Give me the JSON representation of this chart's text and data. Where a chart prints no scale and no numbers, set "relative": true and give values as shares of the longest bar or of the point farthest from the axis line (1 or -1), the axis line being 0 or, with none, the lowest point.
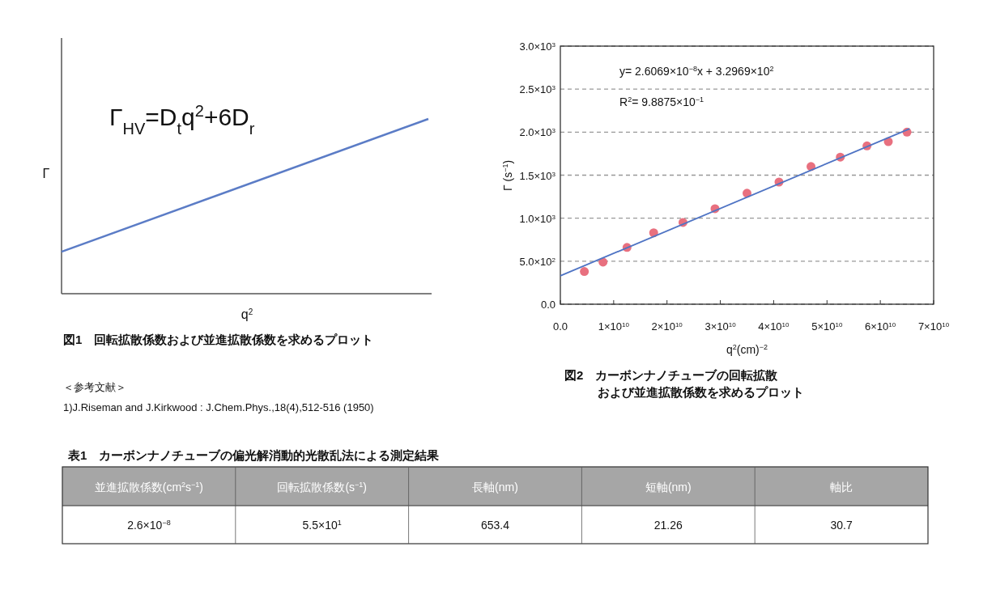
{
  "chart_data": [
    {
      "type": "line",
      "relative": true,
      "categories": [
        null,
        null
      ],
      "values": [
        0.24,
        1
      ],
      "color": "#5b7cc6",
      "xlabel": "q$^{2}$",
      "ylabel": "Γ",
      "annotations": [
        "Γ$_{HV}$=D$_{t}$q$^{2}$+6D$_{r}$",
        "図1　回転拡散係数および並進拡散係数を求めるプロット",
        "＜参考文献＞",
        "1)J.Riseman and J.Kirkwood : J.Chem.Phys.,18(4),512-516 (1950)"
      ]
    },
    {
      "type": "scatter",
      "grid": "y",
      "xlabel": "q$^{2}$(cm)$^{−2}$",
      "ylabel": "Γ (s$^{−1}$)",
      "xlim": [
        0,
        70000000000
      ],
      "ylim": [
        0,
        3000
      ],
      "xticks": [
        {
          "value": 0,
          "label": "0.0"
        },
        {
          "value": 10000000000,
          "label": "1×10$^{10}$"
        },
        {
          "value": 20000000000,
          "label": "2×10$^{10}$"
        },
        {
          "value": 30000000000,
          "label": "3×10$^{10}$"
        },
        {
          "value": 40000000000,
          "label": "4×10$^{10}$"
        },
        {
          "value": 50000000000,
          "label": "5×10$^{10}$"
        },
        {
          "value": 60000000000,
          "label": "6×10$^{10}$"
        },
        {
          "value": 70000000000,
          "label": "7×10$^{10}$"
        }
      ],
      "yticks": [
        {
          "value": 0,
          "label": "0.0"
        },
        {
          "value": 500,
          "label": "5.0×10$^{2}$"
        },
        {
          "value": 1000,
          "label": "1.0×10$^{3}$"
        },
        {
          "value": 1500,
          "label": "1.5×10$^{3}$"
        },
        {
          "value": 2000,
          "label": "2.0×10$^{3}$"
        },
        {
          "value": 2500,
          "label": "2.5×10$^{3}$"
        },
        {
          "value": 3000,
          "label": "3.0×10$^{3}$"
        }
      ],
      "series": [
        {
          "type": "scatter",
          "marker": "circle",
          "color": "#e8707f",
          "x": [
            4500000000,
            8000000000,
            12500000000,
            17500000000,
            23000000000,
            29000000000,
            35000000000,
            41000000000,
            47000000000,
            52500000000,
            57500000000,
            61500000000,
            65000000000
          ],
          "values": [
            380,
            490,
            660,
            830,
            950,
            1110,
            1290,
            1420,
            1600,
            1710,
            1840,
            1890,
            2000
          ]
        },
        {
          "type": "line",
          "marker": "none",
          "color": "#4f74c4",
          "x": [
            0,
            65500000000
          ],
          "values": [
            330,
            2040
          ]
        }
      ],
      "annotations": [
        "y= 2.6069×10$^{−8}$x + 3.2969×10$^{2}$",
        "R$^{2}$= 9.8875×10$^{−1}$",
        "図2　カーボンナノチューブの回転拡散",
        "および並進拡散係数を求めるプロット"
      ]
    },
    {
      "type": "other",
      "title": "表1　カーボンナノチューブの偏光解消動的光散乱法による測定結果",
      "categories": [
        "並進拡散係数(cm$^{2}$s$^{−1}$)",
        "回転拡散係数(s$^{−1}$)",
        "長軸(nm)",
        "短軸(nm)",
        "軸比"
      ],
      "annotations": [
        "2.6×10$^{−8}$",
        "5.5×10$^{1}$",
        "653.4",
        "21.26",
        "30.7"
      ]
    }
  ]
}
